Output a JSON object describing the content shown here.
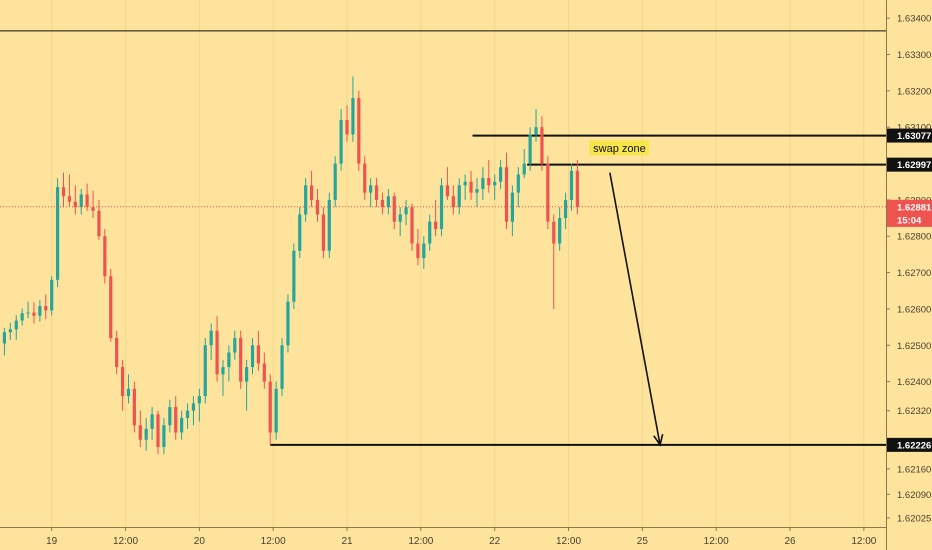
{
  "chart_data": {
    "type": "candlestick",
    "title": "",
    "price_axis": {
      "ticks": [
        "1.63400",
        "1.63300",
        "1.63200",
        "1.63100",
        "1.62900",
        "1.62800",
        "1.62700",
        "1.62600",
        "1.62500",
        "1.62400",
        "1.62320",
        "1.62160",
        "1.62090",
        "1.62025"
      ],
      "range": [
        1.62,
        1.6345
      ],
      "badges": [
        {
          "label": "1.63077",
          "value": 1.63077,
          "style": "dark"
        },
        {
          "label": "1.62997",
          "value": 1.62997,
          "style": "dark"
        },
        {
          "label": "1.62881",
          "value": 1.62881,
          "style": "red"
        },
        {
          "label": "15:04",
          "value": 1.62845,
          "style": "red"
        },
        {
          "label": "1.62226",
          "value": 1.62226,
          "style": "dark"
        }
      ]
    },
    "time_axis": {
      "labels": [
        "19",
        "12:00",
        "20",
        "12:00",
        "21",
        "12:00",
        "22",
        "12:00",
        "25",
        "12:00",
        "26",
        "12:00"
      ],
      "range": [
        -0.5,
        59.5
      ],
      "label_positions": [
        3,
        8,
        13,
        18,
        23,
        28,
        33,
        38,
        43,
        48,
        53,
        58
      ]
    },
    "levels": [
      {
        "name": "top-line",
        "value": 1.63365,
        "from": -0.5,
        "to": 61
      },
      {
        "name": "resistance-upper",
        "value": 1.63077,
        "from": 31.5,
        "to": 61
      },
      {
        "name": "resistance-lower",
        "value": 1.62997,
        "from": 35.2,
        "to": 61
      },
      {
        "name": "target-support",
        "value": 1.62226,
        "from": 17.8,
        "to": 61
      }
    ],
    "current_price": 1.62881,
    "annotation": {
      "text": "swap zone",
      "value": 1.63042,
      "x": 39.6
    },
    "arrow": {
      "from": {
        "x": 40.8,
        "y": 1.62975
      },
      "to": {
        "x": 44.2,
        "y": 1.62226
      }
    },
    "candles": [
      [
        -0.2,
        1.62505,
        1.62548,
        1.62472,
        1.62536
      ],
      [
        0.2,
        1.62536,
        1.62562,
        1.62515,
        1.62544
      ],
      [
        0.6,
        1.62544,
        1.62583,
        1.62515,
        1.62568
      ],
      [
        1.0,
        1.62568,
        1.62602,
        1.62554,
        1.62588
      ],
      [
        1.4,
        1.62588,
        1.6262,
        1.62574,
        1.6259
      ],
      [
        1.8,
        1.6259,
        1.62618,
        1.6256,
        1.62581
      ],
      [
        2.2,
        1.62581,
        1.62624,
        1.62565,
        1.62608
      ],
      [
        2.6,
        1.62608,
        1.6264,
        1.62572,
        1.62596
      ],
      [
        3.0,
        1.62596,
        1.6269,
        1.62582,
        1.6268
      ],
      [
        3.4,
        1.6268,
        1.6296,
        1.6266,
        1.62935
      ],
      [
        3.8,
        1.62935,
        1.62975,
        1.6288,
        1.6291
      ],
      [
        4.2,
        1.6291,
        1.6297,
        1.6288,
        1.62895
      ],
      [
        4.6,
        1.62895,
        1.6294,
        1.6286,
        1.6288
      ],
      [
        5.0,
        1.6288,
        1.6293,
        1.6286,
        1.62915
      ],
      [
        5.4,
        1.62915,
        1.62945,
        1.6287,
        1.6288
      ],
      [
        5.8,
        1.6288,
        1.62925,
        1.6285,
        1.6287
      ],
      [
        6.2,
        1.6287,
        1.629,
        1.6279,
        1.628
      ],
      [
        6.6,
        1.628,
        1.6282,
        1.6267,
        1.6269
      ],
      [
        7.0,
        1.6269,
        1.6271,
        1.6251,
        1.6252
      ],
      [
        7.4,
        1.6252,
        1.6254,
        1.6242,
        1.6244
      ],
      [
        7.8,
        1.6244,
        1.6246,
        1.6232,
        1.6236
      ],
      [
        8.2,
        1.6236,
        1.6242,
        1.6234,
        1.6238
      ],
      [
        8.6,
        1.6238,
        1.624,
        1.6226,
        1.6228
      ],
      [
        9.0,
        1.6228,
        1.6232,
        1.6222,
        1.6224
      ],
      [
        9.4,
        1.6224,
        1.623,
        1.6221,
        1.6227
      ],
      [
        9.8,
        1.6227,
        1.6233,
        1.6224,
        1.6231
      ],
      [
        10.2,
        1.6231,
        1.6232,
        1.622,
        1.6222
      ],
      [
        10.6,
        1.6222,
        1.623,
        1.622,
        1.6228
      ],
      [
        11.0,
        1.6228,
        1.6235,
        1.6226,
        1.6233
      ],
      [
        11.4,
        1.6233,
        1.6236,
        1.6224,
        1.6226
      ],
      [
        11.8,
        1.6226,
        1.6232,
        1.6224,
        1.623
      ],
      [
        12.2,
        1.623,
        1.6234,
        1.6227,
        1.6232
      ],
      [
        12.6,
        1.6232,
        1.6236,
        1.6228,
        1.6234
      ],
      [
        13.0,
        1.6234,
        1.6238,
        1.6229,
        1.6236
      ],
      [
        13.4,
        1.6236,
        1.6252,
        1.6234,
        1.625
      ],
      [
        13.8,
        1.625,
        1.6256,
        1.6246,
        1.6254
      ],
      [
        14.2,
        1.6254,
        1.6258,
        1.624,
        1.6242
      ],
      [
        14.6,
        1.6242,
        1.6246,
        1.6236,
        1.6244
      ],
      [
        15.0,
        1.6244,
        1.625,
        1.624,
        1.6248
      ],
      [
        15.4,
        1.6248,
        1.6254,
        1.6246,
        1.6252
      ],
      [
        15.8,
        1.6252,
        1.6254,
        1.6238,
        1.624
      ],
      [
        16.2,
        1.624,
        1.6246,
        1.6232,
        1.6244
      ],
      [
        16.6,
        1.6244,
        1.6252,
        1.6242,
        1.625
      ],
      [
        17.0,
        1.625,
        1.6254,
        1.6243,
        1.6245
      ],
      [
        17.4,
        1.6245,
        1.6248,
        1.6238,
        1.624
      ],
      [
        17.8,
        1.624,
        1.6242,
        1.62226,
        1.6226
      ],
      [
        18.2,
        1.6226,
        1.624,
        1.6224,
        1.6238
      ],
      [
        18.6,
        1.6238,
        1.6252,
        1.6236,
        1.625
      ],
      [
        19.0,
        1.625,
        1.6264,
        1.6248,
        1.6262
      ],
      [
        19.4,
        1.6262,
        1.6278,
        1.626,
        1.6276
      ],
      [
        19.8,
        1.6276,
        1.6288,
        1.6274,
        1.6286
      ],
      [
        20.2,
        1.6286,
        1.6296,
        1.6284,
        1.6294
      ],
      [
        20.6,
        1.6294,
        1.6298,
        1.6288,
        1.629
      ],
      [
        21.0,
        1.629,
        1.6293,
        1.6284,
        1.6286
      ],
      [
        21.4,
        1.6286,
        1.6288,
        1.6274,
        1.6276
      ],
      [
        21.8,
        1.6276,
        1.6292,
        1.6274,
        1.629
      ],
      [
        22.2,
        1.629,
        1.6302,
        1.6288,
        1.63
      ],
      [
        22.6,
        1.63,
        1.6315,
        1.6298,
        1.6312
      ],
      [
        23.0,
        1.6312,
        1.6316,
        1.6306,
        1.6308
      ],
      [
        23.4,
        1.6308,
        1.6324,
        1.6306,
        1.6318
      ],
      [
        23.8,
        1.6318,
        1.632,
        1.6298,
        1.63
      ],
      [
        24.2,
        1.63,
        1.6302,
        1.629,
        1.6292
      ],
      [
        24.6,
        1.6292,
        1.6296,
        1.6288,
        1.6294
      ],
      [
        25.0,
        1.6294,
        1.6296,
        1.6288,
        1.629
      ],
      [
        25.4,
        1.629,
        1.6292,
        1.6286,
        1.6288
      ],
      [
        25.8,
        1.6288,
        1.6293,
        1.6286,
        1.6291
      ],
      [
        26.2,
        1.6291,
        1.6292,
        1.6282,
        1.6284
      ],
      [
        26.6,
        1.6284,
        1.6288,
        1.628,
        1.6286
      ],
      [
        27.0,
        1.6286,
        1.629,
        1.6283,
        1.6288
      ],
      [
        27.4,
        1.6288,
        1.6289,
        1.6276,
        1.6278
      ],
      [
        27.8,
        1.6278,
        1.6282,
        1.6272,
        1.6274
      ],
      [
        28.2,
        1.6274,
        1.628,
        1.6271,
        1.6278
      ],
      [
        28.6,
        1.6278,
        1.6286,
        1.6276,
        1.6284
      ],
      [
        29.0,
        1.6284,
        1.629,
        1.628,
        1.6282
      ],
      [
        29.4,
        1.6282,
        1.6296,
        1.628,
        1.6294
      ],
      [
        29.8,
        1.6294,
        1.6299,
        1.629,
        1.6291
      ],
      [
        30.2,
        1.6291,
        1.6294,
        1.6286,
        1.6288
      ],
      [
        30.6,
        1.6288,
        1.6296,
        1.6286,
        1.6294
      ],
      [
        31.0,
        1.6294,
        1.6297,
        1.629,
        1.6295
      ],
      [
        31.4,
        1.6295,
        1.6298,
        1.629,
        1.6292
      ],
      [
        31.8,
        1.6292,
        1.6296,
        1.6288,
        1.6293
      ],
      [
        32.2,
        1.6293,
        1.6299,
        1.629,
        1.6296
      ],
      [
        32.6,
        1.6296,
        1.6301,
        1.6292,
        1.6294
      ],
      [
        33.0,
        1.6294,
        1.6297,
        1.629,
        1.6295
      ],
      [
        33.4,
        1.6295,
        1.6301,
        1.6293,
        1.6299
      ],
      [
        33.8,
        1.6299,
        1.6303,
        1.6282,
        1.6284
      ],
      [
        34.2,
        1.6284,
        1.6294,
        1.628,
        1.6292
      ],
      [
        34.6,
        1.6292,
        1.6299,
        1.6288,
        1.6297
      ],
      [
        35.0,
        1.6297,
        1.6304,
        1.6296,
        1.63
      ],
      [
        35.4,
        1.63,
        1.631,
        1.6298,
        1.6308
      ],
      [
        35.8,
        1.6308,
        1.6315,
        1.6306,
        1.631
      ],
      [
        36.2,
        1.631,
        1.6313,
        1.6298,
        1.63
      ],
      [
        36.6,
        1.63,
        1.6302,
        1.6282,
        1.6284
      ],
      [
        37.0,
        1.6284,
        1.6286,
        1.626,
        1.6278
      ],
      [
        37.4,
        1.6278,
        1.6288,
        1.6276,
        1.6285
      ],
      [
        37.8,
        1.6285,
        1.6292,
        1.6282,
        1.629
      ],
      [
        38.2,
        1.629,
        1.63,
        1.6287,
        1.6298
      ],
      [
        38.6,
        1.6298,
        1.6301,
        1.6286,
        1.62881
      ]
    ]
  }
}
